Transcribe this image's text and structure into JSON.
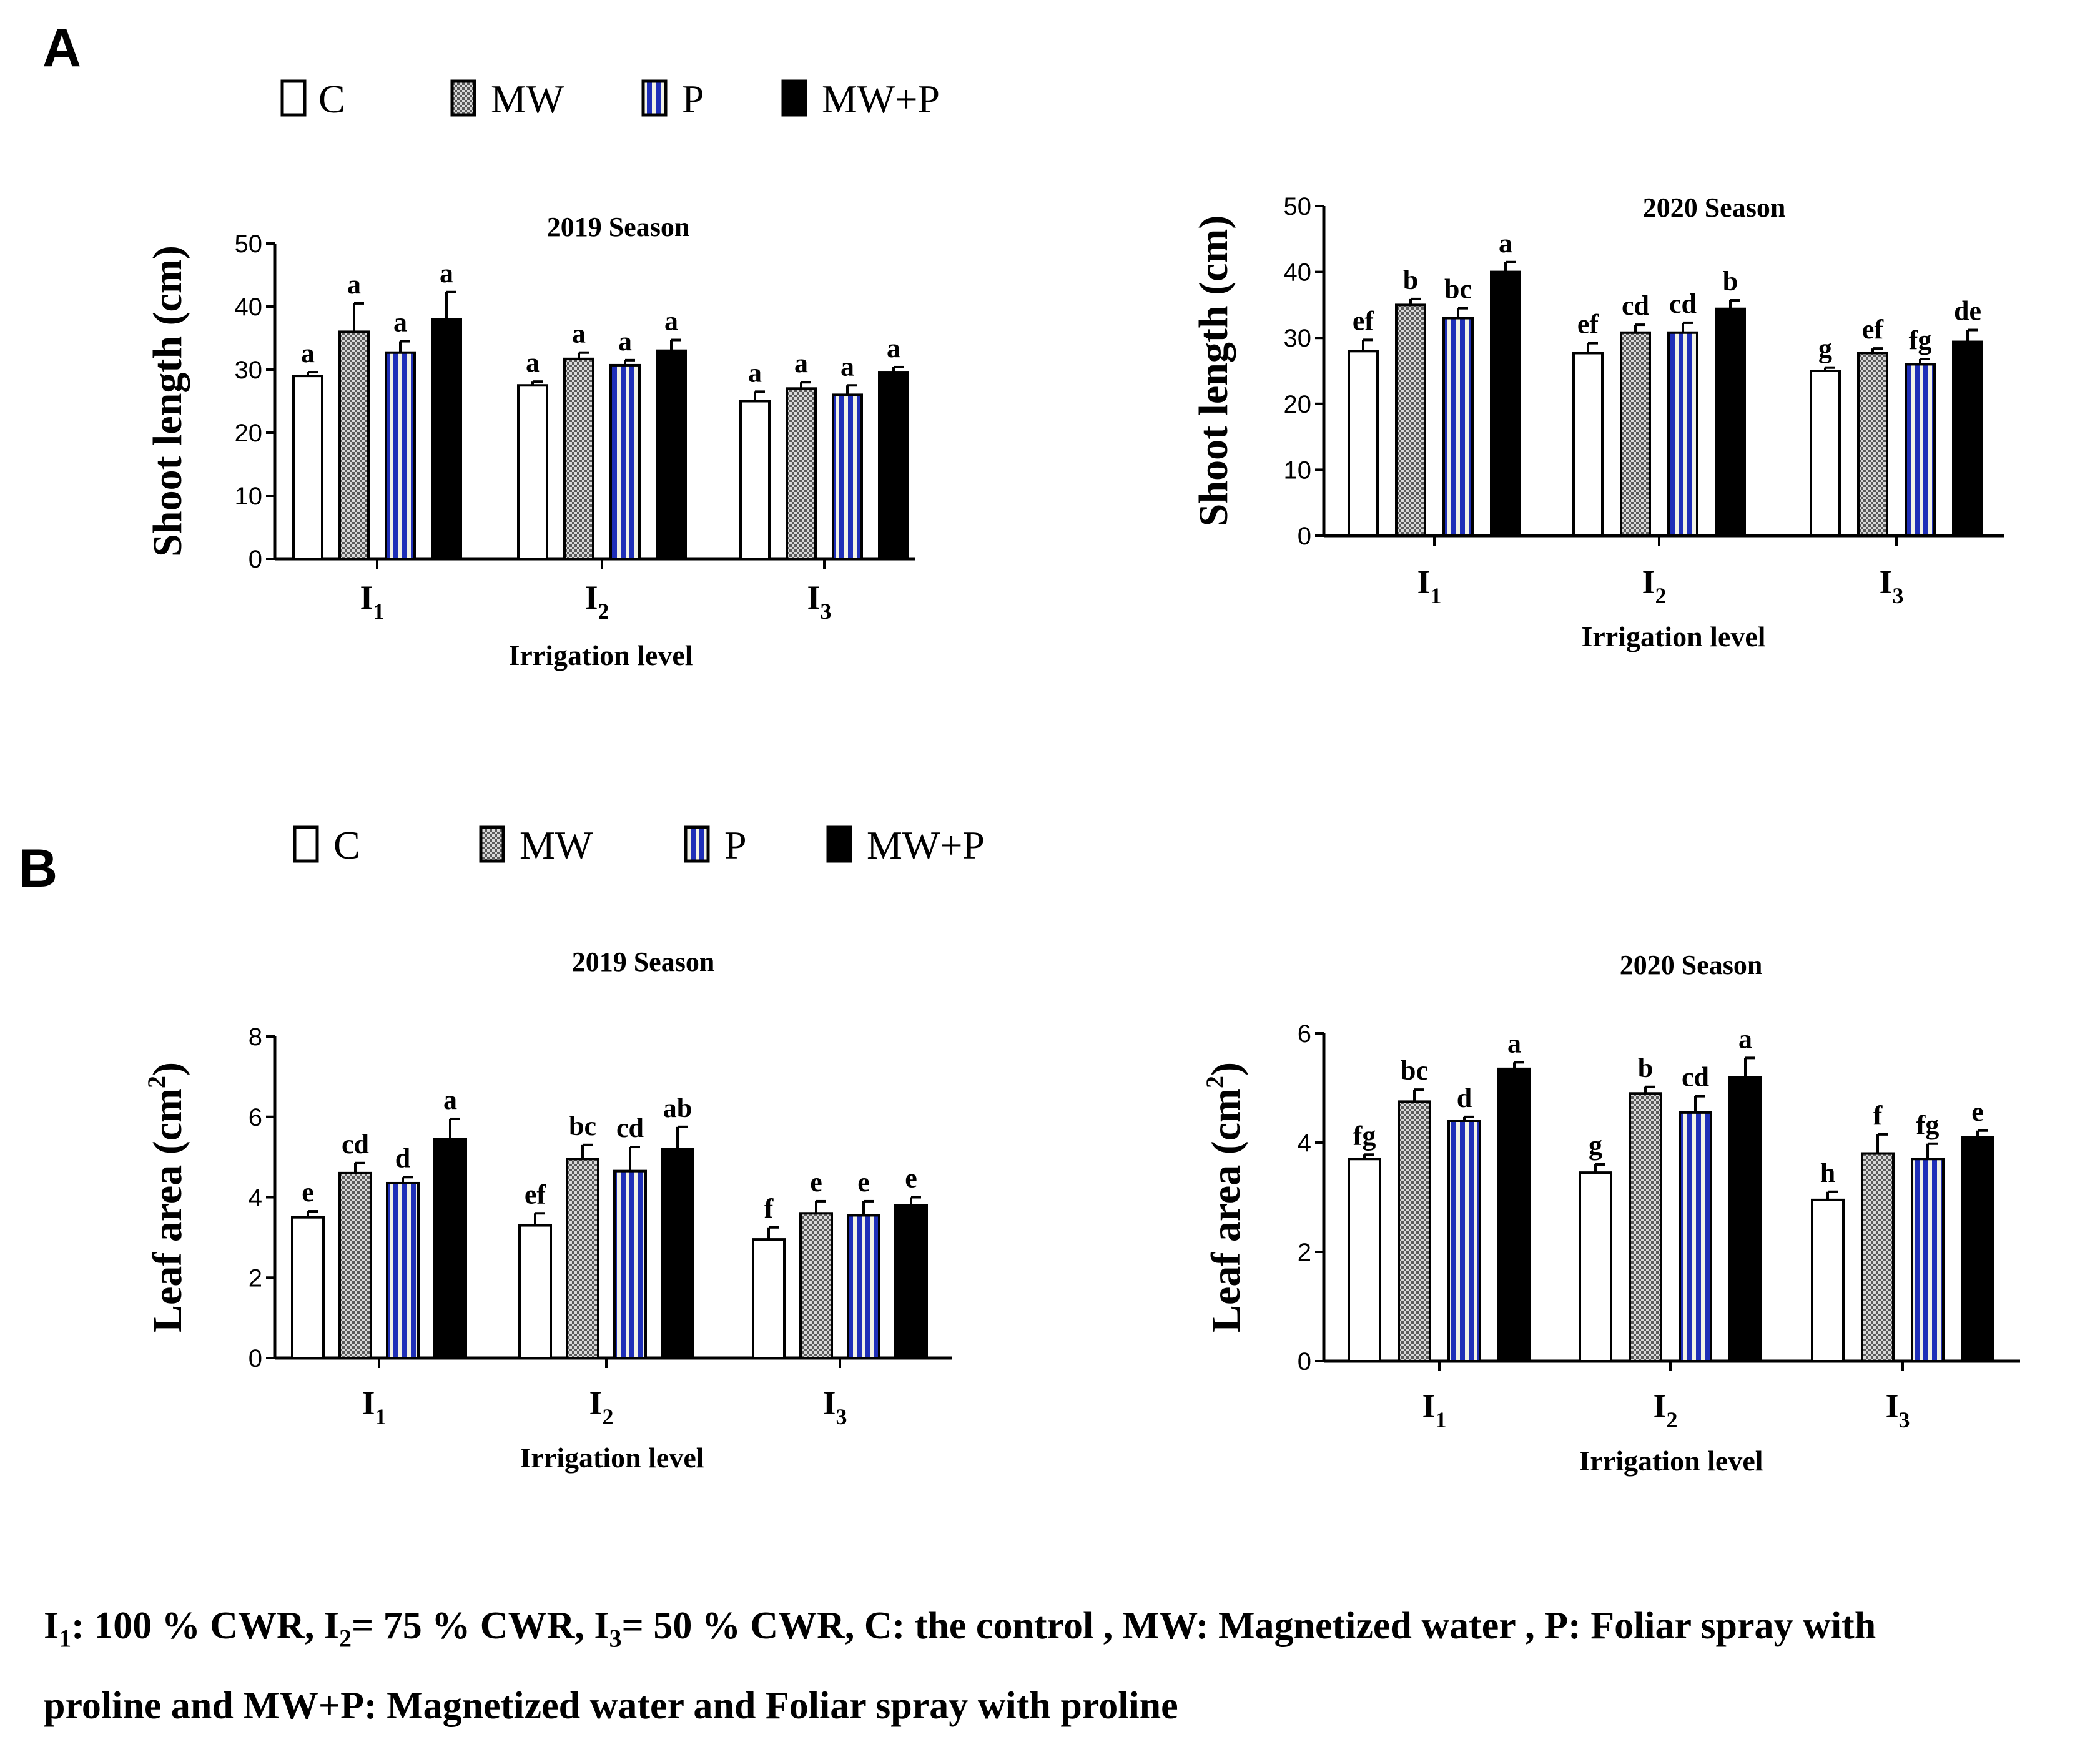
{
  "panels": {
    "A": {
      "letter": "A"
    },
    "B": {
      "letter": "B"
    }
  },
  "legend": {
    "entries": [
      {
        "key": "C",
        "label": "C"
      },
      {
        "key": "MW",
        "label": "MW"
      },
      {
        "key": "P",
        "label": "P"
      },
      {
        "key": "MWP",
        "label": "MW+P"
      }
    ]
  },
  "colors": {
    "axis": "#000000",
    "bar_c": "#ffffff",
    "bar_mw_dark": "#5a5a5a",
    "bar_mw_light": "#d8d8d8",
    "bar_p_blue": "#1f2fb8",
    "bar_p_light": "#f2f2e6",
    "bar_mwp": "#000000"
  },
  "caption": {
    "line1_parts": [
      "I",
      "1",
      ": 100 % CWR, I",
      "2",
      "= 75 % CWR, I",
      "3",
      "= 50 % CWR, C: the control , MW: Magnetized water , P: Foliar spray with"
    ],
    "line2": "proline and MW+P: Magnetized water and Foliar spray with proline"
  },
  "chart_data": [
    {
      "id": "A2019",
      "type": "bar",
      "title": "2019 Season",
      "xlabel": "Irrigation level",
      "ylabel": "Shoot length (cm)",
      "ylim": [
        0,
        50
      ],
      "yticks": [
        0,
        10,
        20,
        30,
        40,
        50
      ],
      "categories": [
        {
          "main": "I",
          "sub": "1"
        },
        {
          "main": "I",
          "sub": "2"
        },
        {
          "main": "I",
          "sub": "3"
        }
      ],
      "series": [
        {
          "name": "C",
          "values": [
            29,
            27.5,
            25
          ],
          "errors": [
            0.6,
            0.6,
            1.5
          ],
          "letters": [
            "a",
            "a",
            "a"
          ]
        },
        {
          "name": "MW",
          "values": [
            36,
            31.7,
            27
          ],
          "errors": [
            4.5,
            1.0,
            1.0
          ],
          "letters": [
            "a",
            "a",
            "a"
          ]
        },
        {
          "name": "P",
          "values": [
            32.7,
            30.7,
            26
          ],
          "errors": [
            1.8,
            0.8,
            1.5
          ],
          "letters": [
            "a",
            "a",
            "a"
          ]
        },
        {
          "name": "MW+P",
          "values": [
            38,
            33,
            29.6
          ],
          "errors": [
            4.3,
            1.7,
            0.8
          ],
          "letters": [
            "a",
            "a",
            "a"
          ]
        }
      ]
    },
    {
      "id": "A2020",
      "type": "bar",
      "title": "2020 Season",
      "xlabel": "Irrigation level",
      "ylabel": "Shoot length (cm)",
      "ylim": [
        0,
        50
      ],
      "yticks": [
        0,
        10,
        20,
        30,
        40,
        50
      ],
      "categories": [
        {
          "main": "I",
          "sub": "1"
        },
        {
          "main": "I",
          "sub": "2"
        },
        {
          "main": "I",
          "sub": "3"
        }
      ],
      "series": [
        {
          "name": "C",
          "values": [
            28,
            27.7,
            25
          ],
          "errors": [
            1.7,
            1.5,
            0.5
          ],
          "letters": [
            "ef",
            "ef",
            "g"
          ]
        },
        {
          "name": "MW",
          "values": [
            35,
            30.8,
            27.7
          ],
          "errors": [
            0.9,
            1.2,
            0.7
          ],
          "letters": [
            "b",
            "cd",
            "ef"
          ]
        },
        {
          "name": "P",
          "values": [
            33,
            30.8,
            26
          ],
          "errors": [
            1.5,
            1.5,
            0.8
          ],
          "letters": [
            "bc",
            "cd",
            "fg"
          ]
        },
        {
          "name": "MW+P",
          "values": [
            40,
            34.4,
            29.4
          ],
          "errors": [
            1.5,
            1.3,
            1.8
          ],
          "letters": [
            "a",
            "b",
            "de"
          ]
        }
      ]
    },
    {
      "id": "B2019",
      "type": "bar",
      "title": "2019 Season",
      "xlabel": "Irrigation level",
      "ylabel_main": "Leaf area (cm",
      "ylabel_sup": "2",
      "ylabel_end": ")",
      "ylim": [
        0,
        8
      ],
      "yticks": [
        0,
        2,
        4,
        6,
        8
      ],
      "categories": [
        {
          "main": "I",
          "sub": "1"
        },
        {
          "main": "I",
          "sub": "2"
        },
        {
          "main": "I",
          "sub": "3"
        }
      ],
      "series": [
        {
          "name": "C",
          "values": [
            3.5,
            3.3,
            2.95
          ],
          "errors": [
            0.15,
            0.3,
            0.3
          ],
          "letters": [
            "e",
            "ef",
            "f"
          ]
        },
        {
          "name": "MW",
          "values": [
            4.6,
            4.95,
            3.6
          ],
          "errors": [
            0.25,
            0.35,
            0.3
          ],
          "letters": [
            "cd",
            "bc",
            "e"
          ]
        },
        {
          "name": "P",
          "values": [
            4.35,
            4.65,
            3.55
          ],
          "errors": [
            0.15,
            0.6,
            0.35
          ],
          "letters": [
            "d",
            "cd",
            "e"
          ]
        },
        {
          "name": "MW+P",
          "values": [
            5.45,
            5.2,
            3.8
          ],
          "errors": [
            0.5,
            0.55,
            0.2
          ],
          "letters": [
            "a",
            "ab",
            "e"
          ]
        }
      ]
    },
    {
      "id": "B2020",
      "type": "bar",
      "title": "2020 Season",
      "xlabel": "Irrigation level",
      "ylabel_main": "Leaf area (cm",
      "ylabel_sup": "2",
      "ylabel_end": ")",
      "ylim": [
        0,
        6
      ],
      "yticks": [
        0,
        2,
        4,
        6
      ],
      "categories": [
        {
          "main": "I",
          "sub": "1"
        },
        {
          "main": "I",
          "sub": "2"
        },
        {
          "main": "I",
          "sub": "3"
        }
      ],
      "series": [
        {
          "name": "C",
          "values": [
            3.7,
            3.45,
            2.95
          ],
          "errors": [
            0.08,
            0.15,
            0.15
          ],
          "letters": [
            "fg",
            "g",
            "h"
          ]
        },
        {
          "name": "MW",
          "values": [
            4.75,
            4.9,
            3.8
          ],
          "errors": [
            0.22,
            0.12,
            0.35
          ],
          "letters": [
            "bc",
            "b",
            "f"
          ]
        },
        {
          "name": "P",
          "values": [
            4.4,
            4.55,
            3.7
          ],
          "errors": [
            0.07,
            0.3,
            0.28
          ],
          "letters": [
            "d",
            "cd",
            "fg"
          ]
        },
        {
          "name": "MW+P",
          "values": [
            5.35,
            5.2,
            4.1
          ],
          "errors": [
            0.12,
            0.35,
            0.12
          ],
          "letters": [
            "a",
            "a",
            "e"
          ]
        }
      ]
    }
  ]
}
